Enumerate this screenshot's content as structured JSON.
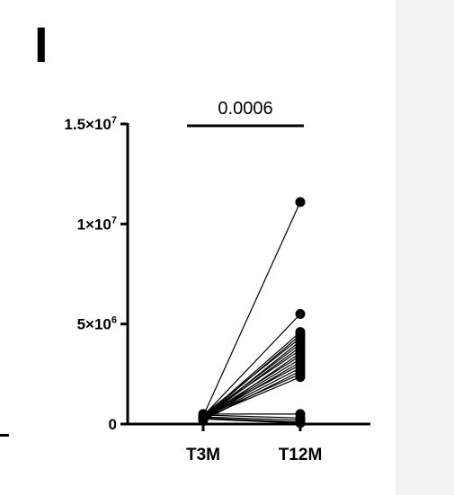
{
  "panel_label": "I",
  "chart_data": {
    "type": "scatter",
    "subtype": "paired-points",
    "title": "",
    "xlabel": "",
    "ylabel": "",
    "categories": [
      "T3M",
      "T12M"
    ],
    "ylim": [
      0,
      15000000
    ],
    "y_ticks": [
      {
        "value": 0,
        "label": "0",
        "mantissa": "0",
        "exp": ""
      },
      {
        "value": 5000000,
        "label": "5×10^6",
        "mantissa": "5×10",
        "exp": "6"
      },
      {
        "value": 10000000,
        "label": "1×10^7",
        "mantissa": "1×10",
        "exp": "7"
      },
      {
        "value": 15000000,
        "label": "1.5×10^7",
        "mantissa": "1.5×10",
        "exp": "7"
      }
    ],
    "significance": {
      "from": "T3M",
      "to": "T12M",
      "p_value": "0.0006"
    },
    "pairs": [
      {
        "T3M": 400000,
        "T12M": 11100000
      },
      {
        "T3M": 400000,
        "T12M": 5500000
      },
      {
        "T3M": 350000,
        "T12M": 4600000
      },
      {
        "T3M": 300000,
        "T12M": 4450000
      },
      {
        "T3M": 450000,
        "T12M": 4300000
      },
      {
        "T3M": 250000,
        "T12M": 4150000
      },
      {
        "T3M": 350000,
        "T12M": 4000000
      },
      {
        "T3M": 300000,
        "T12M": 3850000
      },
      {
        "T3M": 400000,
        "T12M": 3700000
      },
      {
        "T3M": 200000,
        "T12M": 3550000
      },
      {
        "T3M": 350000,
        "T12M": 3400000
      },
      {
        "T3M": 300000,
        "T12M": 3250000
      },
      {
        "T3M": 250000,
        "T12M": 3100000
      },
      {
        "T3M": 400000,
        "T12M": 2950000
      },
      {
        "T3M": 300000,
        "T12M": 2800000
      },
      {
        "T3M": 200000,
        "T12M": 2650000
      },
      {
        "T3M": 350000,
        "T12M": 2500000
      },
      {
        "T3M": 300000,
        "T12M": 2350000
      },
      {
        "T3M": 500000,
        "T12M": 500000
      },
      {
        "T3M": 450000,
        "T12M": 300000
      },
      {
        "T3M": 350000,
        "T12M": 200000
      },
      {
        "T3M": 300000,
        "T12M": 100000
      },
      {
        "T3M": 250000,
        "T12M": 50000
      }
    ],
    "colors": {
      "points": "#000000",
      "lines": "#000000",
      "axes": "#000000"
    }
  }
}
